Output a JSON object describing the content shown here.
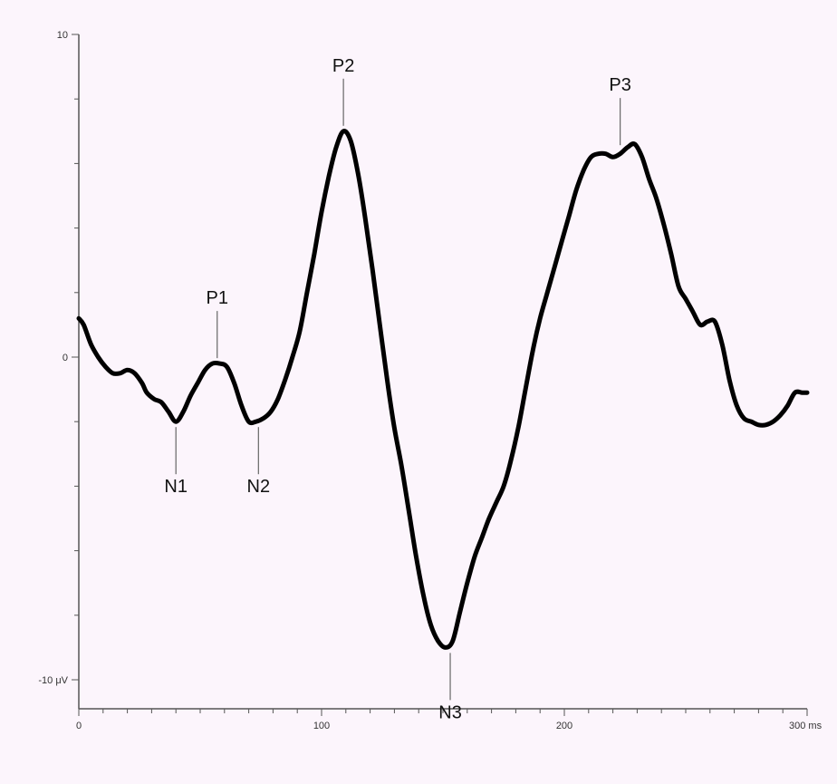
{
  "chart_data": {
    "type": "line",
    "title": "",
    "xlabel": "",
    "ylabel": "",
    "xlim": [
      0,
      300
    ],
    "ylim": [
      -10,
      10
    ],
    "grid": false,
    "x_ticks": [
      {
        "value": 0,
        "label": "0"
      },
      {
        "value": 100,
        "label": "100"
      },
      {
        "value": 200,
        "label": "200"
      },
      {
        "value": 300,
        "label": "300 ms"
      }
    ],
    "y_ticks": [
      {
        "value": 10,
        "label": "10"
      },
      {
        "value": 0,
        "label": "0"
      },
      {
        "value": -10,
        "label": "-10 μV"
      }
    ],
    "series": [
      {
        "color": "#000000",
        "x": [
          0,
          2,
          5,
          8,
          11,
          14,
          17,
          20,
          23,
          26,
          28,
          31,
          34,
          37,
          40,
          43,
          46,
          49,
          52,
          55,
          58,
          61,
          64,
          67,
          70,
          73,
          76,
          79,
          82,
          85,
          88,
          91,
          94,
          97,
          100,
          103,
          106,
          109,
          112,
          115,
          118,
          121,
          124,
          127,
          130,
          133,
          136,
          139,
          142,
          145,
          148,
          151,
          154,
          157,
          160,
          163,
          166,
          169,
          172,
          175,
          178,
          181,
          184,
          187,
          190,
          193,
          196,
          199,
          202,
          205,
          208,
          211,
          214,
          217,
          220,
          223,
          226,
          229,
          232,
          235,
          238,
          241,
          244,
          247,
          250,
          253,
          256,
          259,
          262,
          265,
          268,
          271,
          274,
          277,
          280,
          283,
          286,
          289,
          292,
          295,
          298,
          300
        ],
        "y": [
          1.2,
          1.0,
          0.4,
          0.0,
          -0.3,
          -0.5,
          -0.5,
          -0.4,
          -0.5,
          -0.8,
          -1.1,
          -1.3,
          -1.4,
          -1.7,
          -2.0,
          -1.7,
          -1.2,
          -0.8,
          -0.4,
          -0.2,
          -0.2,
          -0.3,
          -0.8,
          -1.5,
          -2.0,
          -2.0,
          -1.9,
          -1.7,
          -1.3,
          -0.7,
          0.0,
          0.8,
          2.0,
          3.2,
          4.5,
          5.6,
          6.5,
          7.0,
          6.7,
          5.7,
          4.3,
          2.7,
          1.0,
          -0.7,
          -2.2,
          -3.4,
          -4.8,
          -6.2,
          -7.4,
          -8.3,
          -8.8,
          -9.0,
          -8.8,
          -7.9,
          -7.0,
          -6.2,
          -5.6,
          -5.0,
          -4.5,
          -4.0,
          -3.2,
          -2.2,
          -1.0,
          0.2,
          1.2,
          2.0,
          2.8,
          3.6,
          4.4,
          5.2,
          5.8,
          6.2,
          6.3,
          6.3,
          6.2,
          6.3,
          6.5,
          6.6,
          6.2,
          5.5,
          4.9,
          4.1,
          3.2,
          2.2,
          1.8,
          1.4,
          1.0,
          1.1,
          1.1,
          0.4,
          -0.7,
          -1.5,
          -1.9,
          -2.0,
          -2.1,
          -2.1,
          -2.0,
          -1.8,
          -1.5,
          -1.1,
          -1.1,
          -1.1
        ]
      }
    ],
    "annotations": [
      {
        "label": "P1",
        "x": 57,
        "y": -0.2,
        "position": "above"
      },
      {
        "label": "P2",
        "x": 109,
        "y": 7.0,
        "position": "above"
      },
      {
        "label": "P3",
        "x": 223,
        "y": 6.4,
        "position": "above"
      },
      {
        "label": "N1",
        "x": 40,
        "y": -2.0,
        "position": "below"
      },
      {
        "label": "N2",
        "x": 74,
        "y": -2.0,
        "position": "below"
      },
      {
        "label": "N3",
        "x": 153,
        "y": -9.0,
        "position": "below"
      }
    ]
  }
}
